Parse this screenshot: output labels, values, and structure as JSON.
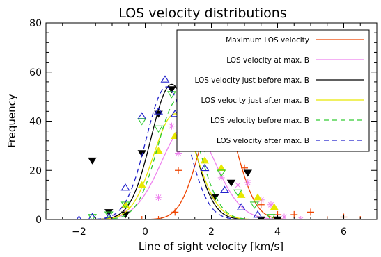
{
  "chart_data": {
    "type": "line",
    "title": "LOS velocity distributions",
    "xlabel": "Line of sight velocity [km/s]",
    "ylabel": "Frequency",
    "xlim": [
      -3,
      7
    ],
    "ylim": [
      0,
      80
    ],
    "xticks": [
      -2,
      0,
      2,
      4,
      6
    ],
    "xtick_labels": [
      "−2",
      "0",
      "2",
      "4",
      "6"
    ],
    "yticks": [
      0,
      20,
      40,
      60,
      80
    ],
    "ytick_labels": [
      "0",
      "20",
      "40",
      "60",
      "80"
    ],
    "legend_position": "top-right",
    "grid": false,
    "series": [
      {
        "name": "Maximum LOS velocity",
        "color": "#ee4400",
        "dash": "solid",
        "marker": "plus",
        "fit": {
          "amplitude": 45.5,
          "mean": 2.2,
          "sigma": 0.58
        },
        "x": [
          -0.1,
          0.4,
          0.9,
          1.0,
          1.4,
          1.9,
          2.3,
          2.9,
          3.0,
          3.5,
          4.0,
          4.5,
          5.0,
          5.5,
          6.0,
          6.5
        ],
        "y": [
          0,
          0,
          3,
          20,
          38,
          36,
          41,
          38,
          21,
          6,
          2,
          2,
          3,
          0,
          1,
          0
        ]
      },
      {
        "name": "LOS velocity at max. B",
        "color": "#ee82ee",
        "dash": "solid",
        "marker": "asterisk",
        "fit": {
          "amplitude": 39,
          "mean": 1.3,
          "sigma": 0.8
        },
        "x": [
          -0.9,
          -0.6,
          0.4,
          0.8,
          1.0,
          1.4,
          1.9,
          2.3,
          2.8,
          3.1,
          3.5,
          3.8,
          4.2,
          4.7
        ],
        "y": [
          1,
          3,
          9,
          38,
          27,
          36,
          34,
          17,
          14,
          15,
          8,
          6,
          1,
          0
        ]
      },
      {
        "name": "LOS velocity just before max. B",
        "color": "#000000",
        "dash": "solid",
        "marker": "triangle-down-filled",
        "fit": {
          "amplitude": 55,
          "mean": 0.8,
          "sigma": 0.62
        },
        "x": [
          -1.6,
          -1.1,
          -0.6,
          -0.1,
          0.4,
          0.8,
          1.6,
          2.1,
          2.6,
          3.1,
          3.5,
          4.0
        ],
        "y": [
          24,
          3,
          2,
          27,
          43,
          53,
          33,
          9,
          15,
          19,
          0,
          0
        ]
      },
      {
        "name": "LOS velocity just after max. B",
        "color": "#e8e800",
        "dash": "solid",
        "marker": "triangle-up-filled",
        "fit": {
          "amplitude": 43,
          "mean": 0.9,
          "sigma": 0.65
        },
        "x": [
          -0.6,
          -0.1,
          0.4,
          0.9,
          1.4,
          1.8,
          2.3,
          2.9,
          3.4,
          3.9
        ],
        "y": [
          6,
          14,
          28,
          34,
          35,
          24,
          21,
          10,
          9,
          5
        ]
      },
      {
        "name": "LOS velocity before max. B",
        "color": "#33cc33",
        "dash": "dash",
        "marker": "triangle-down-open",
        "fit": {
          "amplitude": 49,
          "mean": 1.0,
          "sigma": 0.62
        },
        "x": [
          -1.6,
          -1.1,
          -0.6,
          -0.1,
          0.4,
          0.8,
          1.3,
          1.8,
          2.3,
          2.8,
          3.3,
          3.8
        ],
        "y": [
          1,
          2,
          6,
          40,
          37,
          51,
          36,
          29,
          19,
          11,
          6,
          1
        ]
      },
      {
        "name": "LOS velocity after max. B",
        "color": "#2222cc",
        "dash": "dash",
        "marker": "triangle-up-open",
        "fit": {
          "amplitude": 54,
          "mean": 0.65,
          "sigma": 0.62
        },
        "x": [
          -2.0,
          -1.6,
          -1.1,
          -0.6,
          -0.1,
          0.4,
          0.6,
          0.9,
          1.4,
          1.8,
          2.4,
          2.9,
          3.4
        ],
        "y": [
          0,
          1,
          1,
          13,
          42,
          44,
          57,
          43,
          39,
          21,
          12,
          5,
          2
        ]
      }
    ]
  }
}
